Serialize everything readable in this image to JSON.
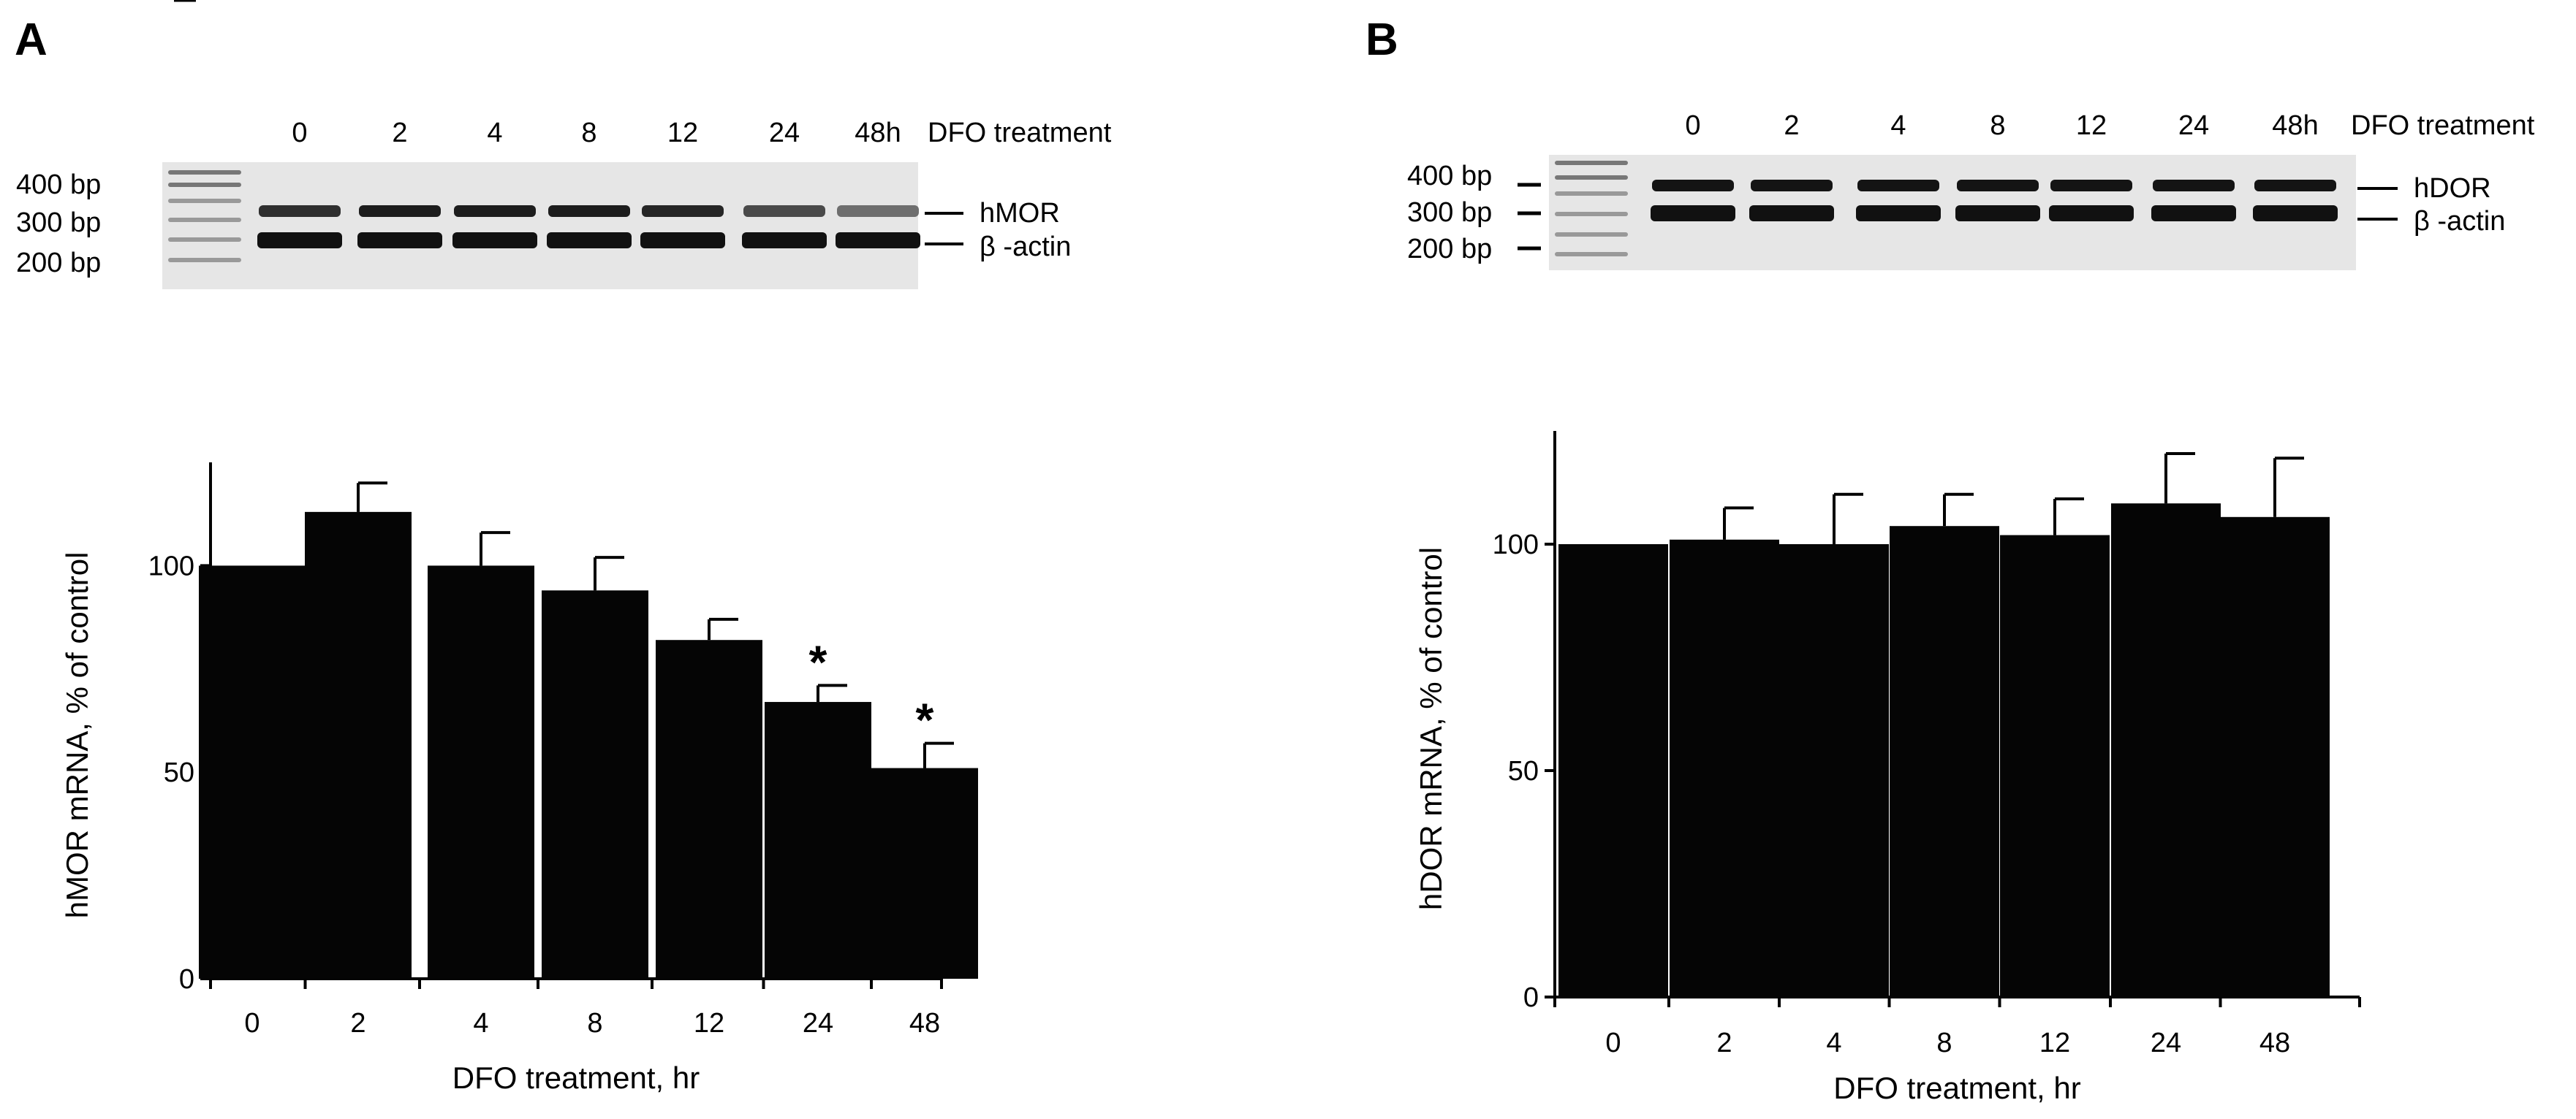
{
  "panels": [
    {
      "letter": "A",
      "gel": {
        "lane_labels": [
          "0",
          "2",
          "4",
          "8",
          "12",
          "24",
          "48h"
        ],
        "header": "DFO treatment",
        "markers": [
          "400 bp",
          "300 bp",
          "200 bp"
        ],
        "band_labels": [
          "hMOR",
          "β -actin"
        ],
        "upper_band_intensity": [
          0.85,
          0.95,
          0.95,
          0.95,
          0.9,
          0.7,
          0.5
        ]
      }
    },
    {
      "letter": "B",
      "gel": {
        "lane_labels": [
          "0",
          "2",
          "4",
          "8",
          "12",
          "24",
          "48h"
        ],
        "header": "DFO treatment",
        "markers": [
          "400 bp",
          "300 bp",
          "200 bp"
        ],
        "band_labels": [
          "hDOR",
          "β -actin"
        ],
        "upper_band_intensity": [
          1,
          1,
          1,
          1,
          1,
          1,
          1
        ]
      }
    }
  ],
  "chart_data": [
    {
      "type": "bar",
      "categories": [
        "0",
        "2",
        "4",
        "8",
        "12",
        "24",
        "48"
      ],
      "values": [
        100,
        113,
        100,
        94,
        82,
        67,
        51
      ],
      "errors": [
        0,
        7,
        8,
        8,
        5,
        4,
        6
      ],
      "significance": [
        "",
        "",
        "",
        "",
        "",
        "*",
        "*"
      ],
      "xlabel": "DFO treatment, hr",
      "ylabel": "hMOR mRNA, % of control",
      "yticks": [
        0,
        50,
        100
      ],
      "ylim": [
        0,
        125
      ],
      "grid": false
    },
    {
      "type": "bar",
      "categories": [
        "0",
        "2",
        "4",
        "8",
        "12",
        "24",
        "48"
      ],
      "values": [
        100,
        101,
        100,
        104,
        102,
        109,
        106
      ],
      "errors": [
        0,
        7,
        11,
        7,
        8,
        11,
        13
      ],
      "significance": [
        "",
        "",
        "",
        "",
        "",
        "",
        ""
      ],
      "xlabel": "DFO treatment, hr",
      "ylabel": "hDOR mRNA, % of control",
      "yticks": [
        0,
        50,
        100
      ],
      "ylim": [
        0,
        125
      ],
      "grid": false
    }
  ]
}
